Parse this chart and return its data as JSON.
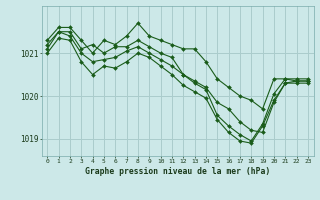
{
  "title": "Graphe pression niveau de la mer (hPa)",
  "background_color": "#cce8e8",
  "grid_color": "#aacccc",
  "line_color": "#1a5c1a",
  "ylim": [
    1018.6,
    1022.1
  ],
  "xlim": [
    -0.5,
    23.5
  ],
  "ylabel_ticks": [
    1019,
    1020,
    1021
  ],
  "xlabel_ticks": [
    0,
    1,
    2,
    3,
    4,
    5,
    6,
    7,
    8,
    9,
    10,
    11,
    12,
    13,
    14,
    15,
    16,
    17,
    18,
    19,
    20,
    21,
    22,
    23
  ],
  "series": [
    [
      1021.3,
      1021.6,
      1021.6,
      1021.3,
      1021.0,
      1021.3,
      1021.2,
      1021.4,
      1021.7,
      1021.4,
      1021.3,
      1021.2,
      1021.1,
      1021.1,
      1020.8,
      1020.4,
      1020.2,
      1020.0,
      1019.9,
      1019.7,
      1020.4,
      1020.4,
      1020.4,
      1020.4
    ],
    [
      1021.2,
      1021.5,
      1021.5,
      1021.1,
      1021.2,
      1021.0,
      1021.15,
      1021.15,
      1021.3,
      1021.15,
      1021.0,
      1020.9,
      1020.5,
      1020.35,
      1020.2,
      1019.85,
      1019.7,
      1019.4,
      1019.2,
      1019.15,
      1019.85,
      1020.3,
      1020.35,
      1020.35
    ],
    [
      1021.1,
      1021.5,
      1021.4,
      1021.0,
      1020.8,
      1020.85,
      1020.9,
      1021.05,
      1021.15,
      1021.0,
      1020.85,
      1020.7,
      1020.5,
      1020.3,
      1020.15,
      1019.55,
      1019.3,
      1019.1,
      1018.95,
      1019.35,
      1020.05,
      1020.4,
      1020.35,
      1020.35
    ],
    [
      1021.0,
      1021.35,
      1021.3,
      1020.8,
      1020.5,
      1020.7,
      1020.65,
      1020.8,
      1021.0,
      1020.9,
      1020.7,
      1020.5,
      1020.25,
      1020.1,
      1019.95,
      1019.45,
      1019.15,
      1018.95,
      1018.9,
      1019.3,
      1019.9,
      1020.3,
      1020.3,
      1020.3
    ]
  ]
}
